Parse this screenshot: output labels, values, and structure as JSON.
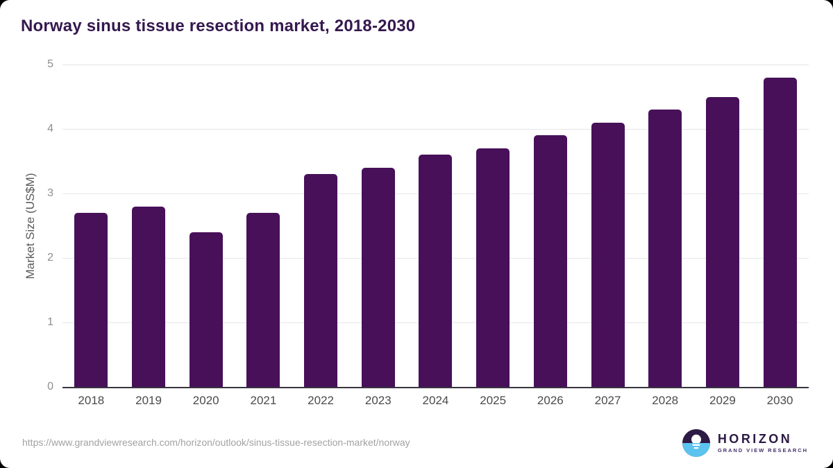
{
  "header": {
    "title": "Norway sinus tissue resection market, 2018-2030"
  },
  "chart_data": {
    "type": "bar",
    "title": "Norway sinus tissue resection market, 2018-2030",
    "categories": [
      "2018",
      "2019",
      "2020",
      "2021",
      "2022",
      "2023",
      "2024",
      "2025",
      "2026",
      "2027",
      "2028",
      "2029",
      "2030"
    ],
    "values": [
      2.7,
      2.8,
      2.4,
      2.7,
      3.3,
      3.4,
      3.6,
      3.7,
      3.9,
      4.1,
      4.3,
      4.5,
      4.8
    ],
    "xlabel": "",
    "ylabel": "Market Size (US$M)",
    "ylim": [
      0,
      5
    ],
    "yticks": [
      0,
      1,
      2,
      3,
      4,
      5
    ],
    "grid": true,
    "legend": "none",
    "bar_color": "#471059"
  },
  "footer": {
    "source_url": "https://www.grandviewresearch.com/horizon/outlook/sinus-tissue-resection-market/norway",
    "logo": {
      "icon": "horizon-sun-circle",
      "name": "HORIZON",
      "subtitle": "GRAND VIEW RESEARCH"
    }
  },
  "colors": {
    "bar": "#471059",
    "title": "#35184e",
    "gridline": "#e6e6e6",
    "axis_line": "#38333e",
    "ytick_label": "#8e8e8e",
    "xtick_label": "#4a4a4a",
    "source_text": "#a2a2a2",
    "logo_purple": "#2d1a45",
    "logo_blue": "#5cc3ef",
    "card_bg": "#ffffff",
    "page_bg": "#000000"
  }
}
